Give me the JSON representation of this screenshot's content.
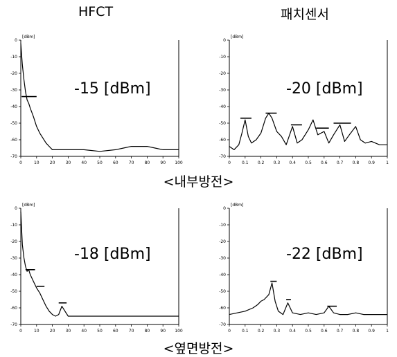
{
  "column_headers": [
    "HFCT",
    "패치센서"
  ],
  "sections": [
    "<내부방전>",
    "<옆면방전>"
  ],
  "chart_data": [
    {
      "type": "line",
      "ylabel": "[dBm]",
      "ylim": [
        -70,
        0
      ],
      "yticks": [
        "0",
        "-10",
        "-20",
        "-30",
        "-40",
        "-50",
        "-60",
        "-70"
      ],
      "xlim": [
        0,
        100
      ],
      "xticks": [
        "0",
        "10",
        "20",
        "30",
        "40",
        "50",
        "60",
        "70",
        "80",
        "90",
        "100"
      ],
      "annotation": "-15 [dBm]",
      "series": [
        {
          "x": [
            0,
            1,
            2,
            3,
            4,
            5,
            6,
            8,
            10,
            12,
            14,
            16,
            18,
            20,
            22,
            25,
            30,
            40,
            50,
            60,
            65,
            70,
            75,
            80,
            85,
            90,
            95,
            100
          ],
          "y": [
            -2,
            -15,
            -24,
            -31,
            -36,
            -38,
            -41,
            -46,
            -52,
            -56,
            -59,
            -62,
            -64,
            -66,
            -66,
            -66,
            -66,
            -66,
            -67,
            -66,
            -65,
            -64,
            -64,
            -64,
            -65,
            -66,
            -66,
            -66
          ]
        }
      ],
      "markers": [
        {
          "x": [
            0.5,
            10
          ],
          "y": -34
        }
      ]
    },
    {
      "type": "line",
      "ylabel": "[dBm]",
      "ylim": [
        -70,
        0
      ],
      "yticks": [
        "0",
        "-10",
        "-20",
        "-30",
        "-40",
        "-50",
        "-60",
        "-70"
      ],
      "xlim": [
        0,
        1
      ],
      "xticks": [
        "0",
        "0.1",
        "0.2",
        "0.3",
        "0.4",
        "0.5",
        "0.6",
        "0.7",
        "0.8",
        "0.9",
        "1"
      ],
      "annotation": "-20 [dBm]",
      "series": [
        {
          "x": [
            0,
            0.03,
            0.06,
            0.08,
            0.1,
            0.12,
            0.14,
            0.17,
            0.2,
            0.23,
            0.25,
            0.27,
            0.3,
            0.33,
            0.36,
            0.4,
            0.43,
            0.46,
            0.5,
            0.53,
            0.56,
            0.6,
            0.63,
            0.66,
            0.7,
            0.73,
            0.76,
            0.8,
            0.83,
            0.86,
            0.9,
            0.95,
            1.0
          ],
          "y": [
            -64,
            -66,
            -63,
            -56,
            -48,
            -58,
            -62,
            -60,
            -56,
            -47,
            -44,
            -47,
            -55,
            -58,
            -63,
            -52,
            -62,
            -60,
            -54,
            -48,
            -57,
            -55,
            -62,
            -57,
            -51,
            -61,
            -57,
            -52,
            -60,
            -62,
            -61,
            -63,
            -63
          ]
        }
      ],
      "markers": [
        {
          "x": [
            0.07,
            0.14
          ],
          "y": -47
        },
        {
          "x": [
            0.23,
            0.3
          ],
          "y": -44
        },
        {
          "x": [
            0.39,
            0.46
          ],
          "y": -51
        },
        {
          "x": [
            0.55,
            0.63
          ],
          "y": -53
        },
        {
          "x": [
            0.66,
            0.77
          ],
          "y": -50
        }
      ]
    },
    {
      "type": "line",
      "ylabel": "[dBm]",
      "ylim": [
        -70,
        0
      ],
      "yticks": [
        "0",
        "-10",
        "-20",
        "-30",
        "-40",
        "-50",
        "-60",
        "-70"
      ],
      "xlim": [
        0,
        100
      ],
      "xticks": [
        "0",
        "10",
        "20",
        "30",
        "40",
        "50",
        "60",
        "70",
        "80",
        "90",
        "100"
      ],
      "annotation": "-18 [dBm]",
      "series": [
        {
          "x": [
            0,
            1,
            2,
            3,
            4,
            5,
            6,
            8,
            10,
            12,
            14,
            16,
            18,
            20,
            22,
            24,
            26,
            28,
            30,
            35,
            40,
            50,
            60,
            70,
            80,
            90,
            100
          ],
          "y": [
            -2,
            -22,
            -30,
            -35,
            -38,
            -37,
            -40,
            -44,
            -48,
            -51,
            -55,
            -59,
            -62,
            -64,
            -65,
            -64,
            -59,
            -62,
            -65,
            -65,
            -65,
            -65,
            -65,
            -65,
            -65,
            -65,
            -65
          ]
        }
      ],
      "markers": [
        {
          "x": [
            3,
            9
          ],
          "y": -37
        },
        {
          "x": [
            10,
            15
          ],
          "y": -47
        },
        {
          "x": [
            24,
            29
          ],
          "y": -57
        }
      ]
    },
    {
      "type": "line",
      "ylabel": "[dBm]",
      "ylim": [
        -70,
        0
      ],
      "yticks": [
        "0",
        "-10",
        "-20",
        "-30",
        "-40",
        "-50",
        "-60",
        "-70"
      ],
      "xlim": [
        0,
        1
      ],
      "xticks": [
        "0",
        "0.1",
        "0.2",
        "0.3",
        "0.4",
        "0.5",
        "0.6",
        "0.7",
        "0.8",
        "0.9",
        "1"
      ],
      "annotation": "-22 [dBm]",
      "series": [
        {
          "x": [
            0,
            0.05,
            0.1,
            0.15,
            0.18,
            0.2,
            0.22,
            0.25,
            0.27,
            0.29,
            0.31,
            0.34,
            0.37,
            0.4,
            0.45,
            0.5,
            0.55,
            0.6,
            0.63,
            0.66,
            0.7,
            0.75,
            0.8,
            0.85,
            0.9,
            0.95,
            1.0
          ],
          "y": [
            -64,
            -63,
            -62,
            -60,
            -58,
            -56,
            -55,
            -52,
            -45,
            -56,
            -62,
            -64,
            -57,
            -63,
            -64,
            -63,
            -64,
            -63,
            -59,
            -63,
            -64,
            -64,
            -63,
            -64,
            -64,
            -64,
            -64
          ]
        }
      ],
      "markers": [
        {
          "x": [
            0.26,
            0.3
          ],
          "y": -44
        },
        {
          "x": [
            0.36,
            0.39
          ],
          "y": -55
        },
        {
          "x": [
            0.62,
            0.68
          ],
          "y": -59
        }
      ]
    }
  ]
}
